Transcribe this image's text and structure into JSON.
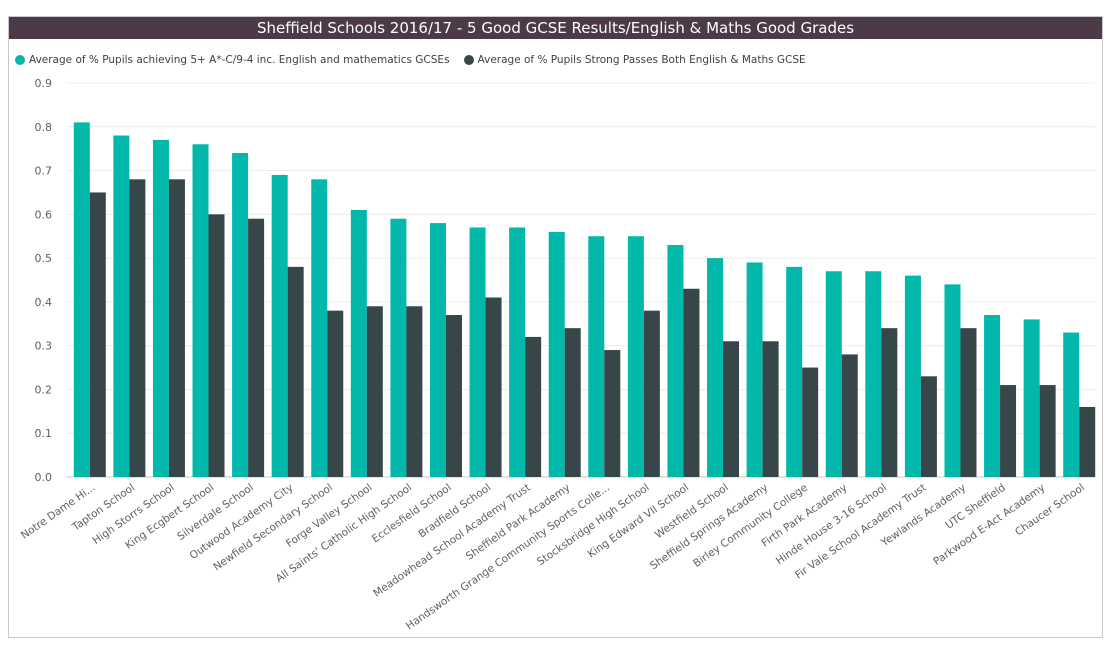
{
  "colors": {
    "series_a": "#01b8aa",
    "series_b": "#374649",
    "title_bg": "#4d3a48"
  },
  "chart_data": {
    "type": "bar",
    "title": "Sheffield Schools 2016/17 - 5 Good GCSE Results/English & Maths Good Grades",
    "xlabel": "",
    "ylabel": "",
    "ylim": [
      0,
      0.9
    ],
    "yticks": [
      "0.0",
      "0.1",
      "0.2",
      "0.3",
      "0.4",
      "0.5",
      "0.6",
      "0.7",
      "0.8",
      "0.9"
    ],
    "legend_position": "top-left",
    "grid": true,
    "categories": [
      "Notre Dame Hi...",
      "Tapton School",
      "High Storrs School",
      "King Ecgbert School",
      "Silverdale School",
      "Outwood Academy City",
      "Newfield Secondary School",
      "Forge Valley School",
      "All Saints' Catholic High School",
      "Ecclesfield School",
      "Bradfield School",
      "Meadowhead School Academy Trust",
      "Sheffield Park Academy",
      "Handsworth Grange Community Sports Colle...",
      "Stocksbridge High School",
      "King Edward VII School",
      "Westfield School",
      "Sheffield Springs Academy",
      "Birley Community College",
      "Firth Park Academy",
      "Hinde House 3-16 School",
      "Fir Vale School Academy Trust",
      "Yewlands Academy",
      "UTC Sheffield",
      "Parkwood E-Act Academy",
      "Chaucer School"
    ],
    "series": [
      {
        "name": "Average of % Pupils achieving 5+ A*-C/9-4 inc. English and mathematics GCSEs",
        "values": [
          0.81,
          0.78,
          0.77,
          0.76,
          0.74,
          0.69,
          0.68,
          0.61,
          0.59,
          0.58,
          0.57,
          0.57,
          0.56,
          0.55,
          0.55,
          0.53,
          0.5,
          0.49,
          0.48,
          0.47,
          0.47,
          0.46,
          0.44,
          0.37,
          0.36,
          0.33
        ]
      },
      {
        "name": "Average of % Pupils Strong Passes Both English & Maths GCSE",
        "values": [
          0.65,
          0.68,
          0.68,
          0.6,
          0.59,
          0.48,
          0.38,
          0.39,
          0.39,
          0.37,
          0.41,
          0.32,
          0.34,
          0.29,
          0.38,
          0.43,
          0.31,
          0.31,
          0.25,
          0.28,
          0.34,
          0.23,
          0.34,
          0.21,
          0.21,
          0.16
        ]
      }
    ]
  }
}
